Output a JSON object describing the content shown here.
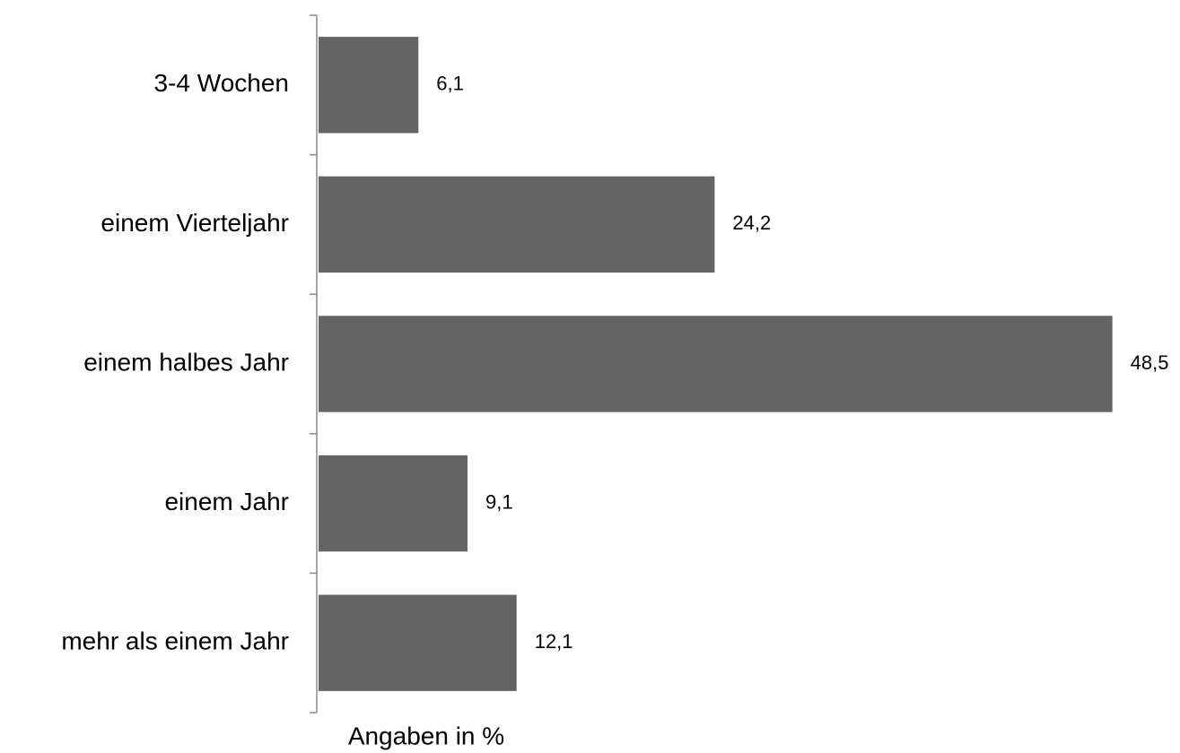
{
  "chart_data": {
    "type": "barh",
    "categories": [
      "3-4 Wochen",
      "einem Vierteljahr",
      "einem halbes Jahr",
      "einem Jahr",
      "mehr als einem Jahr"
    ],
    "values": [
      6.1,
      24.2,
      48.5,
      9.1,
      12.1
    ],
    "value_labels": [
      "6,1",
      "24,2",
      "48,5",
      "9,1",
      "12,1"
    ],
    "color": "#646464",
    "xlim": [
      0,
      50
    ],
    "xlabel": "Angaben in %"
  }
}
